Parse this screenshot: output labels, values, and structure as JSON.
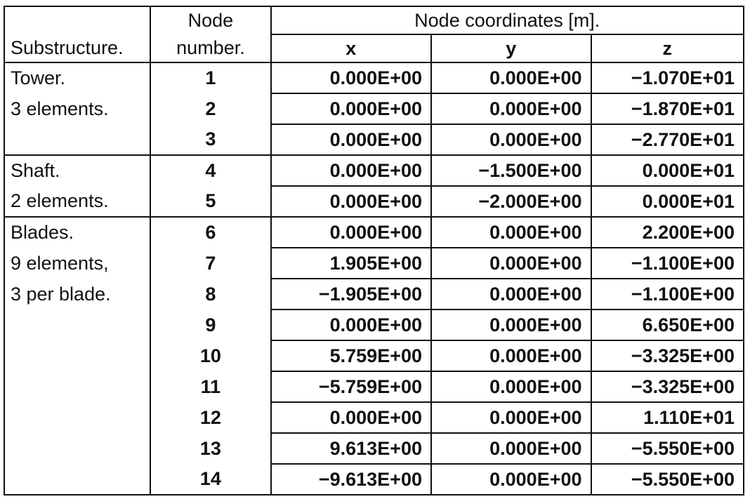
{
  "header": {
    "substructure": "Substructure.",
    "node_line1": "Node",
    "node_line2": "number.",
    "coords": "Node coordinates [m].",
    "x": "x",
    "y": "y",
    "z": "z"
  },
  "groups": [
    {
      "label_lines": [
        "Tower.",
        "3 elements."
      ],
      "rows": [
        {
          "node": "1",
          "x": "0.000E+00",
          "y": "0.000E+00",
          "z": "−1.070E+01"
        },
        {
          "node": "2",
          "x": "0.000E+00",
          "y": "0.000E+00",
          "z": "−1.870E+01"
        },
        {
          "node": "3",
          "x": "0.000E+00",
          "y": "0.000E+00",
          "z": "−2.770E+01"
        }
      ]
    },
    {
      "label_lines": [
        "Shaft.",
        "2 elements."
      ],
      "rows": [
        {
          "node": "4",
          "x": "0.000E+00",
          "y": "−1.500E+00",
          "z": "0.000E+01"
        },
        {
          "node": "5",
          "x": "0.000E+00",
          "y": "−2.000E+00",
          "z": "0.000E+01"
        }
      ]
    },
    {
      "label_lines": [
        "Blades.",
        "9 elements,",
        "3 per blade."
      ],
      "rows": [
        {
          "node": "6",
          "x": "0.000E+00",
          "y": "0.000E+00",
          "z": "2.200E+00"
        },
        {
          "node": "7",
          "x": "1.905E+00",
          "y": "0.000E+00",
          "z": "−1.100E+00"
        },
        {
          "node": "8",
          "x": "−1.905E+00",
          "y": "0.000E+00",
          "z": "−1.100E+00"
        },
        {
          "node": "9",
          "x": "0.000E+00",
          "y": "0.000E+00",
          "z": "6.650E+00"
        },
        {
          "node": "10",
          "x": "5.759E+00",
          "y": "0.000E+00",
          "z": "−3.325E+00"
        },
        {
          "node": "11",
          "x": "−5.759E+00",
          "y": "0.000E+00",
          "z": "−3.325E+00"
        },
        {
          "node": "12",
          "x": "0.000E+00",
          "y": "0.000E+00",
          "z": "1.110E+01"
        },
        {
          "node": "13",
          "x": "9.613E+00",
          "y": "0.000E+00",
          "z": "−5.550E+00"
        },
        {
          "node": "14",
          "x": "−9.613E+00",
          "y": "0.000E+00",
          "z": "−5.550E+00"
        }
      ]
    }
  ]
}
